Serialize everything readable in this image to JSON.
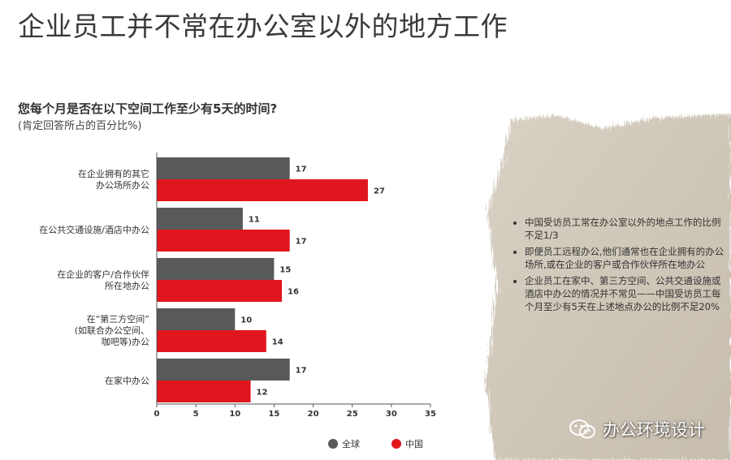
{
  "page": {
    "title": "企业员工并不常在办公室以外的地方工作",
    "question": "您每个月是否在以下空间工作至少有5天的时间?",
    "question_note": "(肯定回答所占的百分比%)"
  },
  "chart_data": {
    "type": "bar",
    "orientation": "horizontal",
    "categories": [
      [
        "在企业拥有的其它",
        "办公场所办公"
      ],
      [
        "在公共交通设施/酒店中办公"
      ],
      [
        "在企业的客户/合作伙伴",
        "所在地办公"
      ],
      [
        "在“第三方空间”",
        "(如联合办公空间、",
        "咖吧等)办公"
      ],
      [
        "在家中办公"
      ]
    ],
    "series": [
      {
        "name": "全球",
        "color": "#58595b",
        "values": [
          17,
          11,
          15,
          10,
          17
        ]
      },
      {
        "name": "中国",
        "color": "#e0161f",
        "values": [
          27,
          17,
          16,
          14,
          12
        ]
      }
    ],
    "xlim": [
      0,
      35
    ],
    "xticks": [
      0,
      5,
      10,
      15,
      20,
      25,
      30,
      35
    ],
    "grid": false,
    "legend_position": "bottom"
  },
  "notes": {
    "items": [
      "中国受访员工常在办公室以外的地点工作的比例不足1/3",
      "即便员工远程办公,他们通常也在企业拥有的办公场所,或在企业的客户或合作伙伴所在地办公",
      "企业员工在家中、第三方空间、公共交通设施或酒店中办公的情况并不常见——中国受访员工每个月至少有5天在上述地点办公的比例不足20%"
    ]
  },
  "watermark": {
    "text": "办公环境设计",
    "icon": "wechat-icon"
  }
}
